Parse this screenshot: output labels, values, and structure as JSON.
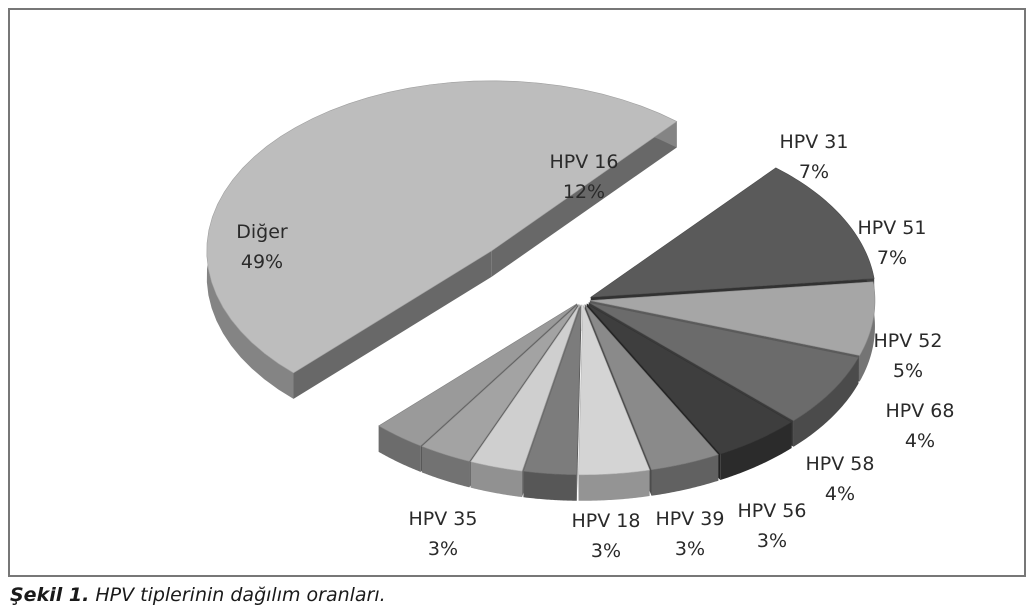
{
  "chart_data": {
    "type": "pie",
    "title": "",
    "style": "3d-exploded",
    "categories": [
      "Diğer",
      "HPV 16",
      "HPV 31",
      "HPV 51",
      "HPV 52",
      "HPV 68",
      "HPV 58",
      "HPV 56",
      "HPV 39",
      "HPV 18",
      "HPV 35"
    ],
    "values": [
      49,
      12,
      7,
      7,
      5,
      4,
      4,
      3,
      3,
      3,
      3
    ],
    "value_labels": [
      "49%",
      "12%",
      "7%",
      "7%",
      "5%",
      "4%",
      "4%",
      "3%",
      "3%",
      "3%",
      "3%"
    ],
    "colors": [
      "#bdbdbd",
      "#5a5a5a",
      "#a6a6a6",
      "#6b6b6b",
      "#3e3e3e",
      "#8a8a8a",
      "#d4d4d4",
      "#7c7c7c",
      "#cfcfcf",
      "#a3a3a3",
      "#9a9a9a"
    ]
  },
  "caption": {
    "label": "Şekil 1.",
    "text": " HPV tiplerinin dağılım oranları."
  }
}
